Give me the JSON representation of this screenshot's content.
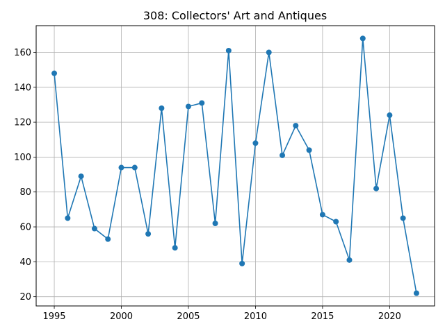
{
  "chart_data": {
    "type": "line",
    "title": "308: Collectors' Art and Antiques",
    "xlabel": "",
    "ylabel": "",
    "x": [
      1995,
      1996,
      1997,
      1998,
      1999,
      2000,
      2001,
      2002,
      2003,
      2004,
      2005,
      2006,
      2007,
      2008,
      2009,
      2010,
      2011,
      2012,
      2013,
      2014,
      2015,
      2016,
      2017,
      2018,
      2019,
      2020,
      2021,
      2022
    ],
    "series": [
      {
        "values": [
          148,
          65,
          89,
          59,
          53,
          94,
          94,
          56,
          128,
          48,
          129,
          131,
          62,
          161,
          39,
          108,
          160,
          101,
          118,
          104,
          67,
          63,
          41,
          168,
          82,
          124,
          65,
          22
        ],
        "color": "#1f77b4",
        "marker": "circle"
      }
    ],
    "xlim": [
      1993.65,
      2023.35
    ],
    "ylim": [
      14.7,
      175.3
    ],
    "x_ticks": [
      1995,
      2000,
      2005,
      2010,
      2015,
      2020
    ],
    "y_ticks": [
      20,
      40,
      60,
      80,
      100,
      120,
      140,
      160
    ],
    "grid": true,
    "legend": "none"
  }
}
